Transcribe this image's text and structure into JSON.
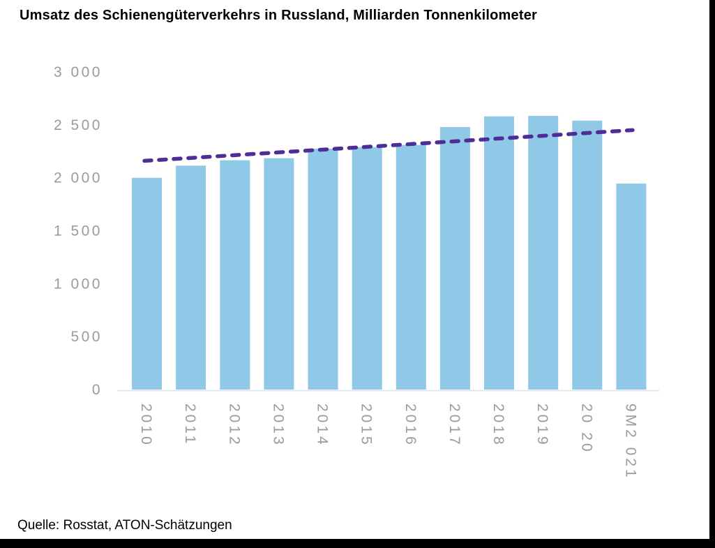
{
  "title": "Umsatz des Schienengüterverkehrs in Russland, Milliarden Tonnenkilometer",
  "source": "Quelle: Rosstat, ATON-Schätzungen",
  "colors": {
    "bar": "#90c9e8",
    "trendline": "#4f2d96",
    "axis_labels": "#9b9b9b",
    "axis_line": "#e0e7ee",
    "text": "#000000",
    "border_strips": "#000000",
    "background": "#ffffff"
  },
  "chart_data": {
    "type": "bar",
    "title": "Umsatz des Schienengüterverkehrs in Russland, Milliarden Tonnenkilometer",
    "categories": [
      "2010",
      "2011",
      "2012",
      "2013",
      "2014",
      "2015",
      "2016",
      "2017",
      "2018",
      "2019",
      "20 20",
      "9M2 021"
    ],
    "values": [
      2000,
      2115,
      2165,
      2185,
      2275,
      2290,
      2310,
      2480,
      2580,
      2585,
      2540,
      1945
    ],
    "trendline": {
      "type": "linear",
      "dashed": true,
      "start_value": 2160,
      "end_value": 2450
    },
    "ylim": [
      0,
      3000
    ],
    "yticks": [
      0,
      500,
      1000,
      1500,
      2000,
      2500,
      3000
    ],
    "ytick_labels": [
      "0",
      "500",
      "1 000",
      "1 500",
      "2 000",
      "2 500",
      "3 000"
    ],
    "xlabel": "",
    "ylabel": "",
    "grid": false,
    "legend": false,
    "x_tick_rotation_deg": 90
  }
}
